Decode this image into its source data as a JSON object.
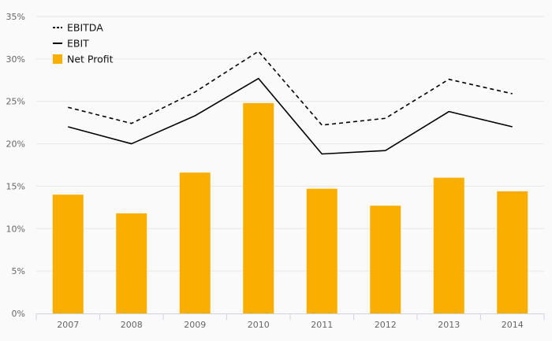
{
  "chart_data": {
    "type": "bar",
    "categories": [
      "2007",
      "2008",
      "2009",
      "2010",
      "2011",
      "2012",
      "2013",
      "2014"
    ],
    "series": [
      {
        "name": "EBITDA",
        "kind": "line",
        "style": "dashed",
        "color": "#000000",
        "values": [
          24.3,
          22.4,
          26.1,
          30.9,
          22.2,
          23.0,
          27.6,
          25.9
        ]
      },
      {
        "name": "EBIT",
        "kind": "line",
        "style": "solid",
        "color": "#000000",
        "values": [
          22.0,
          20.0,
          23.3,
          27.7,
          18.8,
          19.2,
          23.8,
          22.0
        ]
      },
      {
        "name": "Net Profit",
        "kind": "bar",
        "color": "#f9ae00",
        "values": [
          14.0,
          11.8,
          16.6,
          24.8,
          14.7,
          12.7,
          16.0,
          14.4
        ]
      }
    ],
    "yticks": [
      "0%",
      "5%",
      "10%",
      "15%",
      "20%",
      "25%",
      "30%",
      "35%"
    ],
    "ylim": [
      0,
      35
    ],
    "grid": true,
    "legend": "top-left"
  }
}
